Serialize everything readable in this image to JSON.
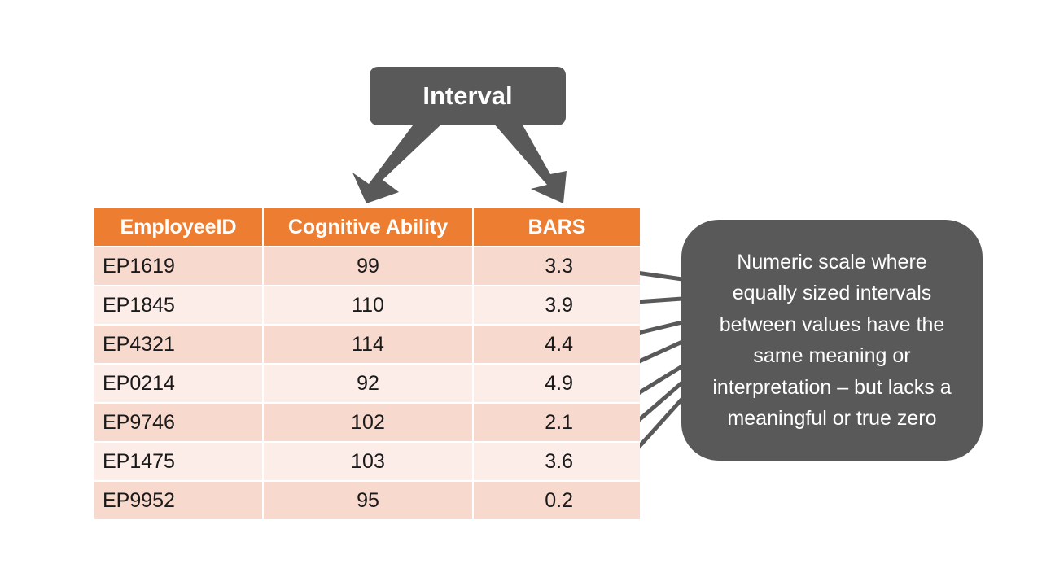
{
  "title": "Interval",
  "table": {
    "headers": [
      "EmployeeID",
      "Cognitive Ability",
      "BARS"
    ],
    "rows": [
      [
        "EP1619",
        "99",
        "3.3"
      ],
      [
        "EP1845",
        "110",
        "3.9"
      ],
      [
        "EP4321",
        "114",
        "4.4"
      ],
      [
        "EP0214",
        "92",
        "4.9"
      ],
      [
        "EP9746",
        "102",
        "2.1"
      ],
      [
        "EP1475",
        "103",
        "3.6"
      ],
      [
        "EP9952",
        "95",
        "0.2"
      ]
    ]
  },
  "callout": "Numeric scale where equally sized intervals between values have the same meaning or interpretation – but lacks a meaningful or true zero",
  "colors": {
    "header": "#ED7D31",
    "row_odd": "#F8D9CD",
    "row_even": "#FCEDE8",
    "box": "#595959",
    "arrow": "#595959"
  }
}
